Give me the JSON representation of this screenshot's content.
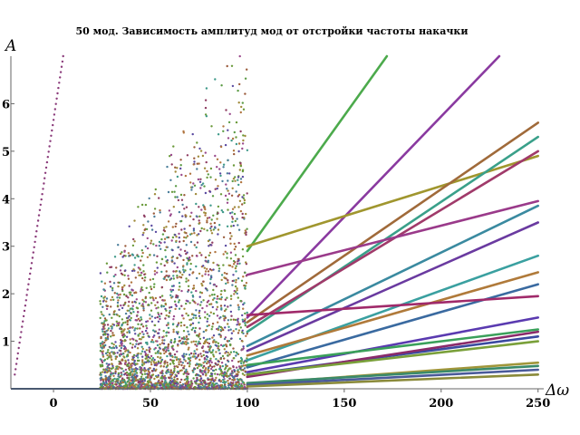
{
  "chart_data": {
    "type": "scatter",
    "title": "50 мод. Зависимость амплитуд мод от отстройки частоты накачки",
    "xlabel": "Δω",
    "ylabel": "A",
    "xlim": [
      -22,
      252
    ],
    "ylim": [
      0,
      7.0
    ],
    "x_ticks": [
      0,
      50,
      100,
      150,
      200,
      250
    ],
    "y_ticks": [
      1,
      2,
      3,
      4,
      5,
      6
    ],
    "x_tick_labels": [
      "0",
      "50",
      "100",
      "150",
      "200",
      "250"
    ],
    "y_tick_labels": [
      "1",
      "2",
      "3",
      "4",
      "5",
      "6"
    ],
    "grid": false,
    "legend": "none",
    "palette": [
      "#5b9b45",
      "#9a4a8c",
      "#4a7d9a",
      "#a08a3a",
      "#8f3e63",
      "#3f9a8a",
      "#b07540",
      "#5a4aa0",
      "#6a9a3a",
      "#9a5a3a"
    ],
    "noise_region": {
      "x_range": [
        24,
        100
      ],
      "y_range": [
        0,
        7.0
      ],
      "approx_points": 3000
    },
    "steep_series": {
      "color": "#8a3a7a",
      "x": [
        -20,
        5
      ],
      "y": [
        0.3,
        7.0
      ]
    },
    "baseline": {
      "x": [
        -22,
        24
      ],
      "y": [
        0,
        0
      ],
      "color": "#2a4a7a"
    },
    "series": [
      {
        "color": "#4caa4c",
        "x": [
          100,
          172
        ],
        "y": [
          2.9,
          7.0
        ]
      },
      {
        "color": "#8a3aa0",
        "x": [
          100,
          230
        ],
        "y": [
          1.5,
          7.0
        ]
      },
      {
        "color": "#a0962e",
        "x": [
          100,
          250
        ],
        "y": [
          3.0,
          4.9
        ]
      },
      {
        "color": "#a06a3a",
        "x": [
          100,
          250
        ],
        "y": [
          1.4,
          5.6
        ]
      },
      {
        "color": "#3aa08a",
        "x": [
          100,
          250
        ],
        "y": [
          1.2,
          5.3
        ]
      },
      {
        "color": "#a03a6a",
        "x": [
          100,
          250
        ],
        "y": [
          1.3,
          5.0
        ]
      },
      {
        "color": "#9a3a8a",
        "x": [
          100,
          250
        ],
        "y": [
          2.4,
          3.95
        ]
      },
      {
        "color": "#3a8aa0",
        "x": [
          100,
          250
        ],
        "y": [
          0.9,
          3.85
        ]
      },
      {
        "color": "#6a3aa0",
        "x": [
          100,
          250
        ],
        "y": [
          0.8,
          3.5
        ]
      },
      {
        "color": "#3aa0a0",
        "x": [
          100,
          250
        ],
        "y": [
          0.6,
          2.8
        ]
      },
      {
        "color": "#b07a3a",
        "x": [
          100,
          250
        ],
        "y": [
          0.7,
          2.45
        ]
      },
      {
        "color": "#3a6aa0",
        "x": [
          100,
          250
        ],
        "y": [
          0.45,
          2.2
        ]
      },
      {
        "color": "#a02a6a",
        "x": [
          100,
          250
        ],
        "y": [
          1.55,
          1.95
        ]
      },
      {
        "color": "#5a3ab0",
        "x": [
          100,
          250
        ],
        "y": [
          0.35,
          1.5
        ]
      },
      {
        "color": "#3aa05a",
        "x": [
          100,
          250
        ],
        "y": [
          0.5,
          1.25
        ]
      },
      {
        "color": "#3a4aa0",
        "x": [
          100,
          250
        ],
        "y": [
          0.3,
          1.1
        ]
      },
      {
        "color": "#8a2a6a",
        "x": [
          100,
          250
        ],
        "y": [
          0.25,
          1.2
        ]
      },
      {
        "color": "#7aa03a",
        "x": [
          100,
          250
        ],
        "y": [
          0.3,
          1.0
        ]
      },
      {
        "color": "#a0963a",
        "x": [
          100,
          250
        ],
        "y": [
          0.1,
          0.55
        ]
      },
      {
        "color": "#3a8a6a",
        "x": [
          100,
          250
        ],
        "y": [
          0.12,
          0.48
        ]
      },
      {
        "color": "#4a5a9a",
        "x": [
          100,
          250
        ],
        "y": [
          0.08,
          0.4
        ]
      },
      {
        "color": "#8a8a3a",
        "x": [
          100,
          250
        ],
        "y": [
          0.05,
          0.3
        ]
      }
    ]
  }
}
